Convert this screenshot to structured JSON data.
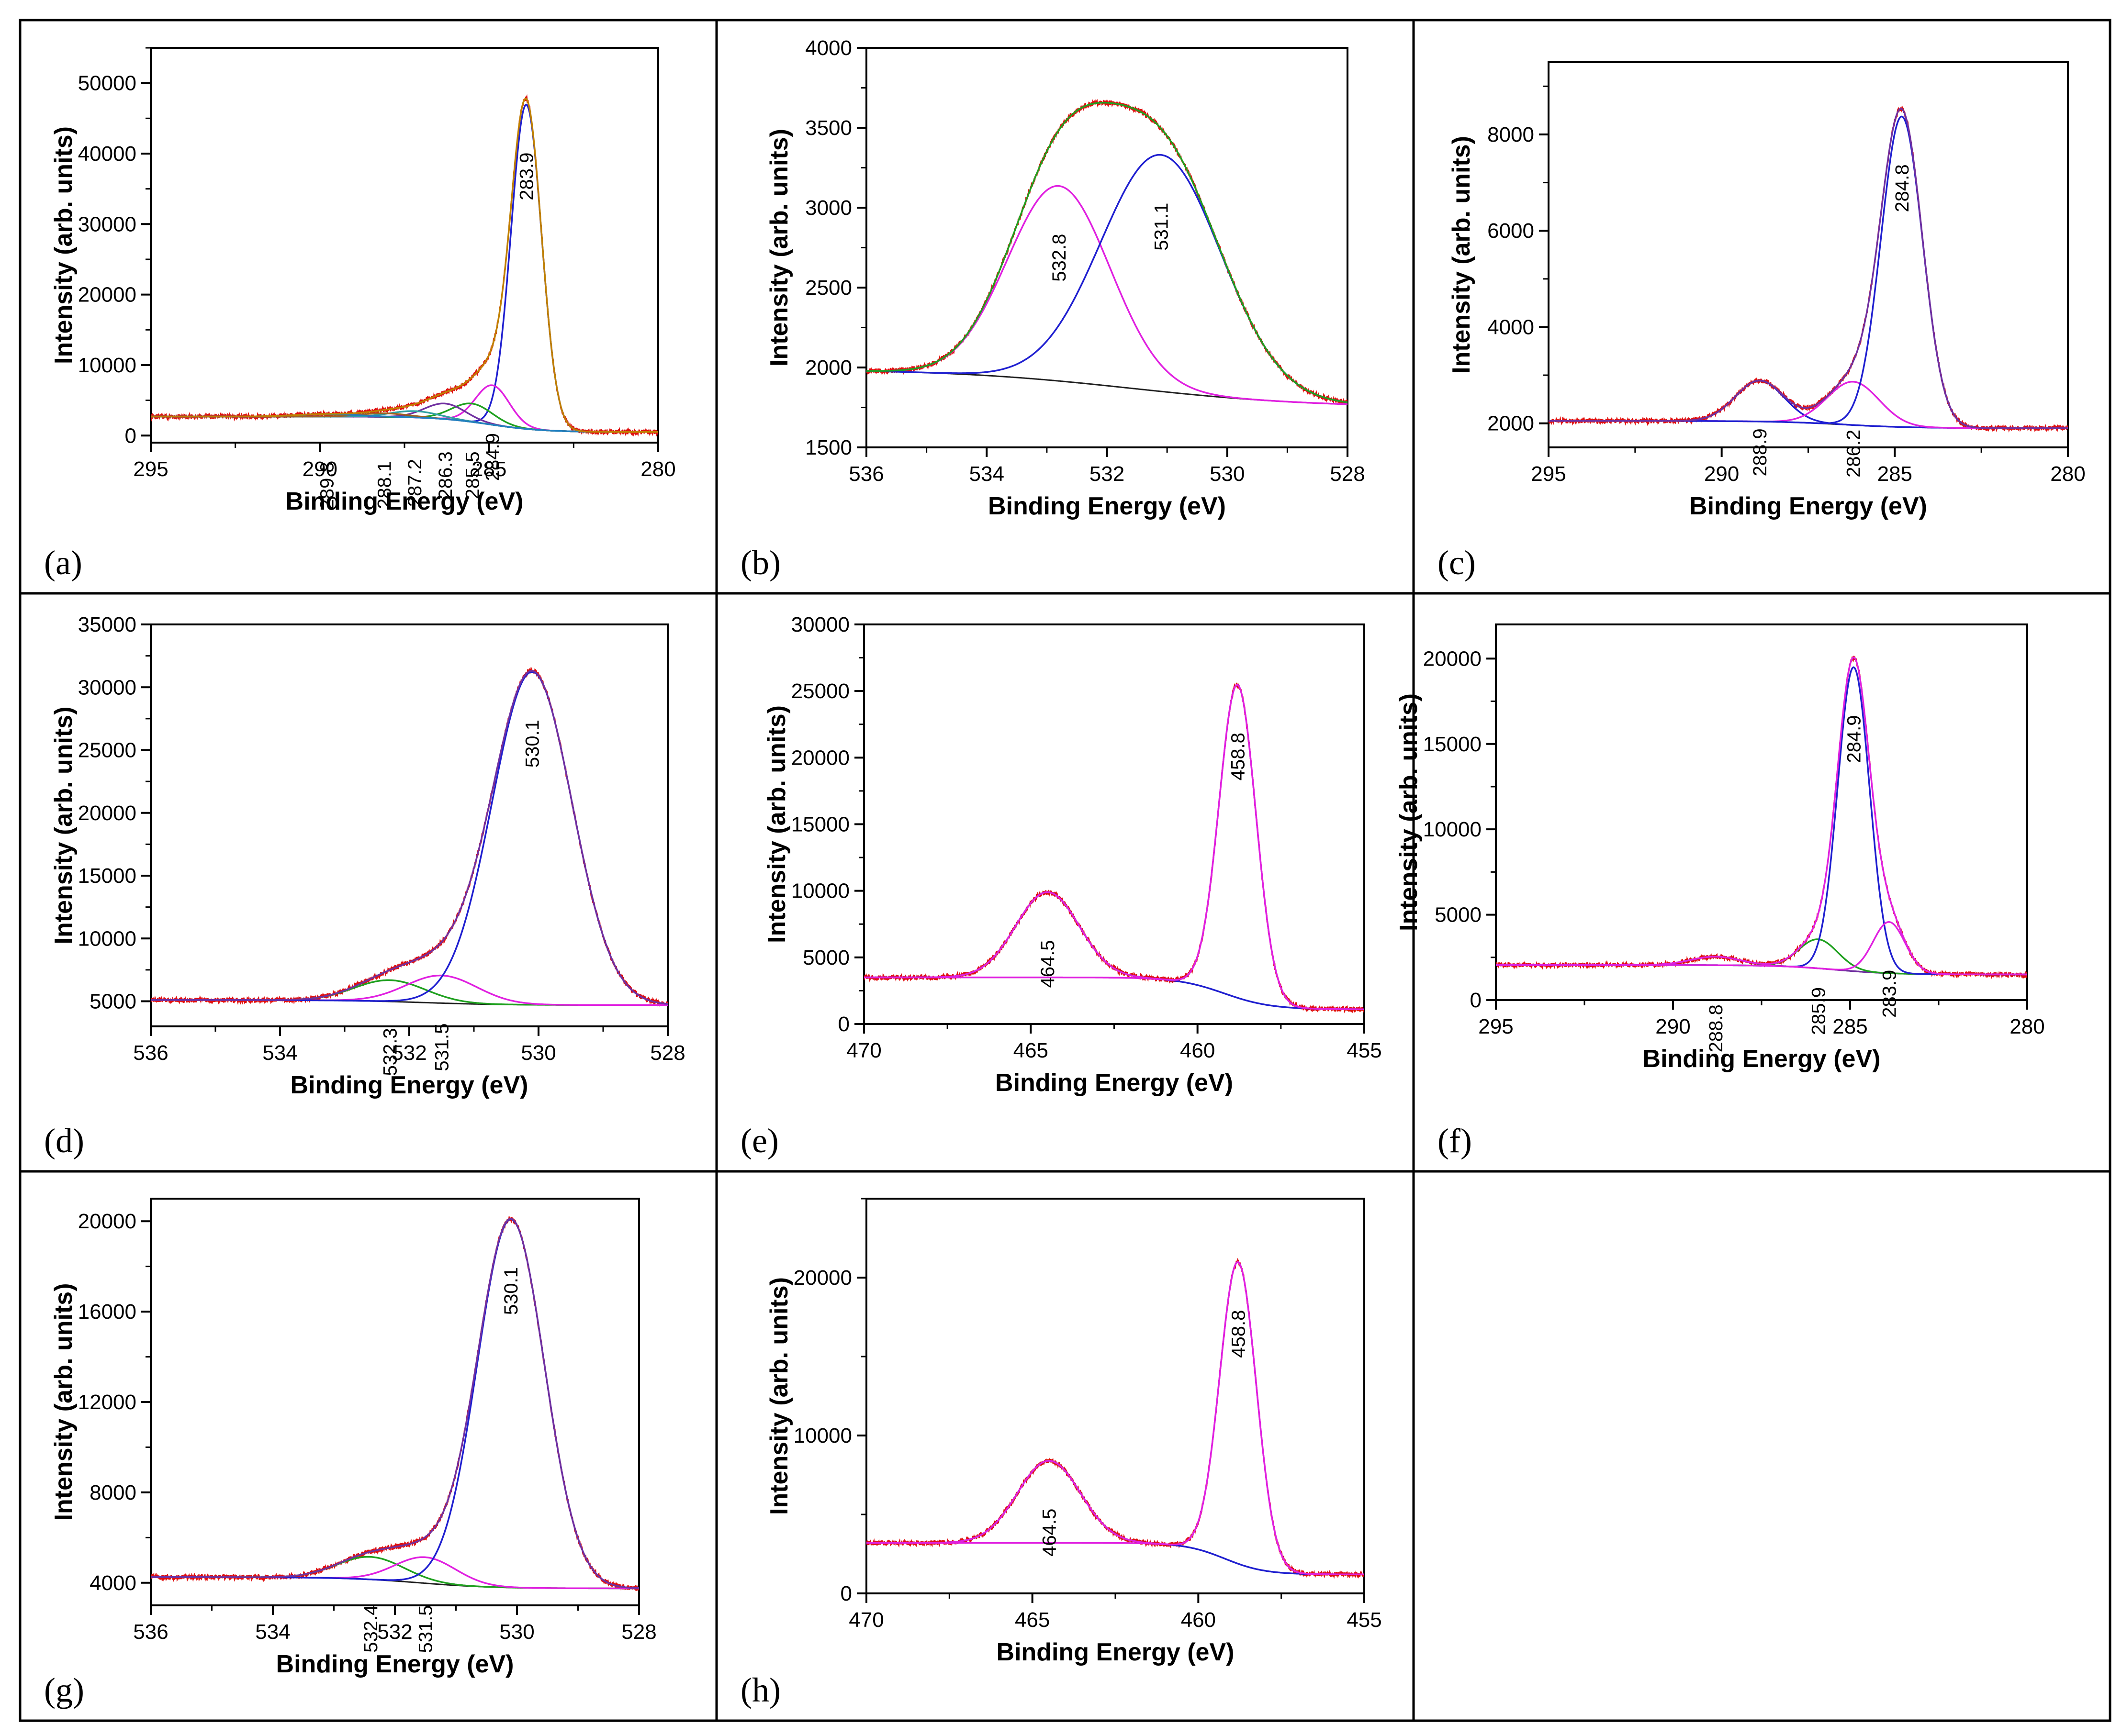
{
  "figure": {
    "description_visible_labels_only": true,
    "panels_order": [
      "a",
      "b",
      "c",
      "d",
      "e",
      "f",
      "g",
      "h"
    ]
  },
  "chart_data": [
    {
      "panel": "a",
      "panel_label": "(a)",
      "type": "line",
      "xlabel": "Binding Energy (eV)",
      "ylabel": "Intensity (arb. units)",
      "xlim": [
        295,
        280
      ],
      "ylim": [
        -1000,
        55000
      ],
      "xticks": [
        295,
        290,
        285,
        280
      ],
      "yticks": [
        0,
        10000,
        20000,
        30000,
        40000,
        50000
      ],
      "background": {
        "start": 2700,
        "end": 500,
        "center": 285.0,
        "width": 0.8
      },
      "components": [
        {
          "center": 283.9,
          "amp": 46000,
          "sigma": 0.45,
          "color": "#1f1fd0",
          "label": "283.9"
        },
        {
          "center": 284.9,
          "amp": 5600,
          "sigma": 0.5,
          "color": "#e020e0",
          "label": "284.9"
        },
        {
          "center": 285.5,
          "amp": 2600,
          "sigma": 0.6,
          "color": "#1fa01f",
          "label": "285.5"
        },
        {
          "center": 286.3,
          "amp": 2200,
          "sigma": 0.6,
          "color": "#7030a0",
          "label": "286.3"
        },
        {
          "center": 287.2,
          "amp": 900,
          "sigma": 0.7,
          "color": "#30a0a0",
          "label": "287.2"
        },
        {
          "center": 288.1,
          "amp": 500,
          "sigma": 0.7,
          "color": "#a06020",
          "label": "288.1"
        },
        {
          "center": 289.8,
          "amp": 350,
          "sigma": 0.9,
          "color": "#2080c0",
          "label": "289.8"
        }
      ],
      "fit_color": "#c08000",
      "raw_color": "#e01010",
      "peak_labels": [
        "289.8",
        "288.1",
        "287.2",
        "286.3",
        "285.5",
        "284.9",
        "283.9"
      ]
    },
    {
      "panel": "b",
      "panel_label": "(b)",
      "type": "line",
      "xlabel": "Binding Energy (eV)",
      "ylabel": "Intensity (arb. units)",
      "xlim": [
        536,
        528
      ],
      "ylim": [
        1500,
        4000
      ],
      "xticks": [
        536,
        534,
        532,
        530,
        528
      ],
      "yticks": [
        1500,
        2000,
        2500,
        3000,
        3500,
        4000
      ],
      "background": {
        "start": 1990,
        "end": 1750,
        "center": 531.6,
        "width": 1.5
      },
      "components": [
        {
          "center": 532.8,
          "amp": 1220,
          "sigma": 0.85,
          "color": "#e020e0",
          "label": "532.8"
        },
        {
          "center": 531.1,
          "amp": 1480,
          "sigma": 1.0,
          "color": "#1f1fd0",
          "label": "531.1"
        }
      ],
      "fit_color": "#1fa01f",
      "raw_color": "#e01010",
      "peak_labels": [
        "532.8",
        "531.1"
      ]
    },
    {
      "panel": "c",
      "panel_label": "(c)",
      "type": "line",
      "xlabel": "Binding Energy (eV)",
      "ylabel": "Intensity (arb. units)",
      "xlim": [
        295,
        280
      ],
      "ylim": [
        1500,
        9500
      ],
      "xticks": [
        295,
        290,
        285,
        280
      ],
      "yticks": [
        2000,
        4000,
        6000,
        8000
      ],
      "background": {
        "start": 2050,
        "end": 1900,
        "center": 286.5,
        "width": 1.0
      },
      "components": [
        {
          "center": 288.9,
          "amp": 850,
          "sigma": 0.7,
          "color": "#1f1fd0",
          "label": "288.9"
        },
        {
          "center": 286.2,
          "amp": 900,
          "sigma": 0.75,
          "color": "#e020e0",
          "label": "286.2"
        },
        {
          "center": 284.8,
          "amp": 6450,
          "sigma": 0.6,
          "color": "#1f1fd0",
          "label": "284.8"
        }
      ],
      "fit_color": "#7030a0",
      "raw_color": "#e01010",
      "peak_labels": [
        "288.9",
        "286.2",
        "284.8"
      ]
    },
    {
      "panel": "d",
      "panel_label": "(d)",
      "type": "line",
      "xlabel": "Binding Energy (eV)",
      "ylabel": "Intensity (arb. units)",
      "xlim": [
        536,
        528
      ],
      "ylim": [
        3000,
        35000
      ],
      "xticks": [
        536,
        534,
        532,
        530,
        528
      ],
      "yticks": [
        5000,
        10000,
        15000,
        20000,
        25000,
        30000,
        35000
      ],
      "background": {
        "start": 5100,
        "end": 4700,
        "center": 531.8,
        "width": 0.6
      },
      "components": [
        {
          "center": 532.3,
          "amp": 1700,
          "sigma": 0.55,
          "color": "#1fa01f",
          "label": "532.3"
        },
        {
          "center": 531.5,
          "amp": 2200,
          "sigma": 0.55,
          "color": "#e020e0",
          "label": "531.5"
        },
        {
          "center": 530.1,
          "amp": 26500,
          "sigma": 0.62,
          "color": "#1f1fd0",
          "label": "530.1"
        }
      ],
      "fit_color": "#7030a0",
      "raw_color": "#e01010",
      "peak_labels": [
        "532.3",
        "531.5",
        "530.1"
      ]
    },
    {
      "panel": "e",
      "panel_label": "(e)",
      "type": "line",
      "xlabel": "Binding Energy (eV)",
      "ylabel": "Intensity (arb. units)",
      "xlim": [
        470,
        455
      ],
      "ylim": [
        0,
        30000
      ],
      "xticks": [
        470,
        465,
        460,
        455
      ],
      "yticks": [
        0,
        5000,
        10000,
        15000,
        20000,
        25000,
        30000
      ],
      "background": {
        "start": 3500,
        "end": 1100,
        "center": 459.2,
        "width": 0.7
      },
      "components": [
        {
          "center": 464.5,
          "amp": 6400,
          "sigma": 0.95,
          "color": "#1f1fd0",
          "label": "464.5"
        },
        {
          "center": 458.8,
          "amp": 23500,
          "sigma": 0.55,
          "color": "#e020e0",
          "label": "458.8"
        }
      ],
      "fit_color": "#e020e0",
      "raw_color": "#e01010",
      "peak_labels": [
        "464.5",
        "458.8"
      ]
    },
    {
      "panel": "f",
      "panel_label": "(f)",
      "type": "line",
      "xlabel": "Binding Energy (eV)",
      "ylabel": "Intensity (arb. units)",
      "xlim": [
        295,
        280
      ],
      "ylim": [
        0,
        22000
      ],
      "xticks": [
        295,
        290,
        285,
        280
      ],
      "yticks": [
        0,
        5000,
        10000,
        15000,
        20000
      ],
      "background": {
        "start": 2050,
        "end": 1500,
        "center": 285.4,
        "width": 0.8
      },
      "components": [
        {
          "center": 288.8,
          "amp": 500,
          "sigma": 0.7,
          "color": "#7030a0",
          "label": "288.8"
        },
        {
          "center": 285.9,
          "amp": 1700,
          "sigma": 0.55,
          "color": "#1fa01f",
          "label": "285.9"
        },
        {
          "center": 284.9,
          "amp": 17800,
          "sigma": 0.45,
          "color": "#1f1fd0",
          "label": "284.9"
        },
        {
          "center": 283.9,
          "amp": 3000,
          "sigma": 0.45,
          "color": "#e020e0",
          "label": "283.9"
        }
      ],
      "fit_color": "#e020e0",
      "raw_color": "#e01010",
      "peak_labels": [
        "288.8",
        "285.9",
        "284.9",
        "283.9"
      ]
    },
    {
      "panel": "g",
      "panel_label": "(g)",
      "type": "line",
      "xlabel": "Binding Energy (eV)",
      "ylabel": "Intensity (arb. units)",
      "xlim": [
        536,
        528
      ],
      "ylim": [
        3000,
        21000
      ],
      "xticks": [
        536,
        534,
        532,
        530,
        528
      ],
      "yticks": [
        4000,
        8000,
        12000,
        16000,
        20000
      ],
      "background": {
        "start": 4250,
        "end": 3750,
        "center": 531.6,
        "width": 0.6
      },
      "components": [
        {
          "center": 532.4,
          "amp": 1000,
          "sigma": 0.55,
          "color": "#1fa01f",
          "label": "532.4"
        },
        {
          "center": 531.5,
          "amp": 1150,
          "sigma": 0.5,
          "color": "#e020e0",
          "label": "531.5"
        },
        {
          "center": 530.1,
          "amp": 16300,
          "sigma": 0.55,
          "color": "#1f1fd0",
          "label": "530.1"
        }
      ],
      "fit_color": "#7030a0",
      "raw_color": "#e01010",
      "peak_labels": [
        "532.4",
        "531.5",
        "530.1"
      ]
    },
    {
      "panel": "h",
      "panel_label": "(h)",
      "type": "line",
      "xlabel": "Binding Energy (eV)",
      "ylabel": "Intensity (arb. units)",
      "xlim": [
        470,
        455
      ],
      "ylim": [
        0,
        25000
      ],
      "xticks": [
        470,
        465,
        460,
        455
      ],
      "yticks": [
        0,
        10000,
        20000
      ],
      "background": {
        "start": 3200,
        "end": 1200,
        "center": 459.2,
        "width": 0.6
      },
      "components": [
        {
          "center": 464.5,
          "amp": 5200,
          "sigma": 0.95,
          "color": "#1f1fd0",
          "label": "464.5"
        },
        {
          "center": 458.8,
          "amp": 19100,
          "sigma": 0.55,
          "color": "#e020e0",
          "label": "458.8"
        }
      ],
      "fit_color": "#e020e0",
      "raw_color": "#e01010",
      "peak_labels": [
        "464.5",
        "458.8"
      ]
    }
  ]
}
